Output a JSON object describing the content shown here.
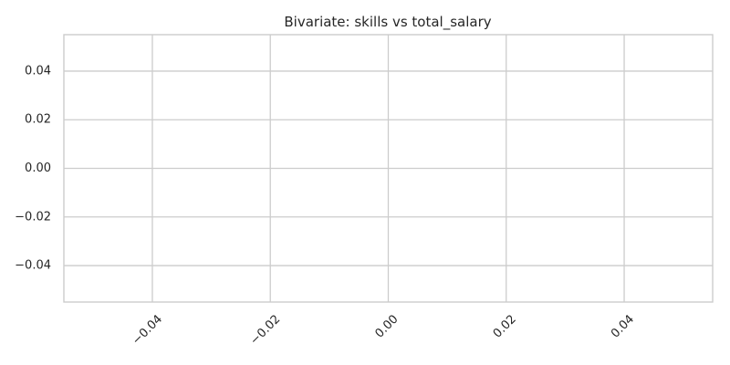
{
  "chart_data": {
    "type": "scatter",
    "title": "Bivariate: skills vs total_salary",
    "xlabel": "",
    "ylabel": "",
    "xlim": [
      -0.055,
      0.055
    ],
    "ylim": [
      -0.055,
      0.055
    ],
    "x_ticks": [
      -0.04,
      -0.02,
      0.0,
      0.02,
      0.04
    ],
    "x_tick_labels": [
      "−0.04",
      "−0.02",
      "0.00",
      "0.02",
      "0.04"
    ],
    "y_ticks": [
      0.04,
      0.02,
      0.0,
      -0.02,
      -0.04
    ],
    "y_tick_labels": [
      "0.04",
      "0.02",
      "0.00",
      "−0.02",
      "−0.04"
    ],
    "x_tick_rotation": 45,
    "grid": true,
    "series": [
      {
        "x": [],
        "y": []
      }
    ]
  }
}
